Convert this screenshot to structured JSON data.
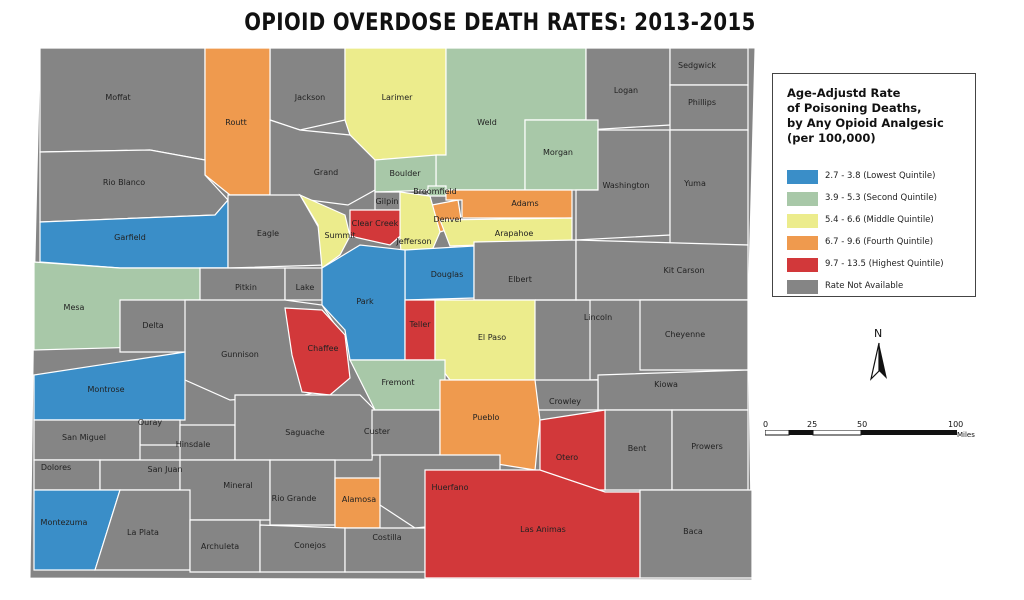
{
  "title": "OPIOID OVERDOSE DEATH RATES:  2013-2015",
  "legend": {
    "title_lines": [
      "Age-Adjustd Rate",
      "of Poisoning Deaths,",
      "by Any Opioid Analgesic",
      "(per 100,000)"
    ],
    "items": [
      {
        "label": "2.7 - 3.8 (Lowest Quintile)",
        "color": "#3a8ec8"
      },
      {
        "label": "3.9 - 5.3 (Second Quintile)",
        "color": "#a8c8a8"
      },
      {
        "label": "5.4 - 6.6 (Middle Quintile)",
        "color": "#ecec8c"
      },
      {
        "label": "6.7 - 9.6 (Fourth Quintile)",
        "color": "#ef9a4e"
      },
      {
        "label": "9.7 - 13.5 (Highest Quintile)",
        "color": "#d2383a"
      },
      {
        "label": "Rate Not Available",
        "color": "#858585"
      }
    ]
  },
  "north_arrow": {
    "label": "N"
  },
  "scale": {
    "ticks": [
      "0",
      "25",
      "50",
      "100"
    ],
    "unit": "Miles"
  },
  "counties": [
    {
      "name": "Moffat",
      "class": "na"
    },
    {
      "name": "Jackson",
      "class": "na"
    },
    {
      "name": "Larimer",
      "class": "q3"
    },
    {
      "name": "Weld",
      "class": "q2"
    },
    {
      "name": "Logan",
      "class": "na"
    },
    {
      "name": "Sedgwick",
      "class": "na"
    },
    {
      "name": "Phillips",
      "class": "na"
    },
    {
      "name": "Routt",
      "class": "q4"
    },
    {
      "name": "Morgan",
      "class": "q2"
    },
    {
      "name": "Rio Blanco",
      "class": "na"
    },
    {
      "name": "Grand",
      "class": "na"
    },
    {
      "name": "Boulder",
      "class": "q2"
    },
    {
      "name": "Broomfield",
      "class": "q2"
    },
    {
      "name": "Washington",
      "class": "na"
    },
    {
      "name": "Yuma",
      "class": "na"
    },
    {
      "name": "Gilpin",
      "class": "na"
    },
    {
      "name": "Clear Creek",
      "class": "q5"
    },
    {
      "name": "Denver",
      "class": "q4"
    },
    {
      "name": "Adams",
      "class": "q4"
    },
    {
      "name": "Garfield",
      "class": "q1"
    },
    {
      "name": "Eagle",
      "class": "na"
    },
    {
      "name": "Summit",
      "class": "q3"
    },
    {
      "name": "Jefferson",
      "class": "q3"
    },
    {
      "name": "Arapahoe",
      "class": "q3"
    },
    {
      "name": "Douglas",
      "class": "q1"
    },
    {
      "name": "Elbert",
      "class": "na"
    },
    {
      "name": "Kit Carson",
      "class": "na"
    },
    {
      "name": "Mesa",
      "class": "q2"
    },
    {
      "name": "Pitkin",
      "class": "na"
    },
    {
      "name": "Lake",
      "class": "na"
    },
    {
      "name": "Park",
      "class": "q1"
    },
    {
      "name": "Teller",
      "class": "q5"
    },
    {
      "name": "Lincoln",
      "class": "na"
    },
    {
      "name": "Cheyenne",
      "class": "na"
    },
    {
      "name": "Delta",
      "class": "na"
    },
    {
      "name": "Gunnison",
      "class": "na"
    },
    {
      "name": "Chaffee",
      "class": "q5"
    },
    {
      "name": "El Paso",
      "class": "q3"
    },
    {
      "name": "Kiowa",
      "class": "na"
    },
    {
      "name": "Montrose",
      "class": "q1"
    },
    {
      "name": "Fremont",
      "class": "q2"
    },
    {
      "name": "Crowley",
      "class": "na"
    },
    {
      "name": "Ouray",
      "class": "na"
    },
    {
      "name": "San Miguel",
      "class": "na"
    },
    {
      "name": "Hinsdale",
      "class": "na"
    },
    {
      "name": "Saguache",
      "class": "na"
    },
    {
      "name": "Custer",
      "class": "na"
    },
    {
      "name": "Pueblo",
      "class": "q4"
    },
    {
      "name": "Bent",
      "class": "na"
    },
    {
      "name": "Prowers",
      "class": "na"
    },
    {
      "name": "Otero",
      "class": "q5"
    },
    {
      "name": "Dolores",
      "class": "na"
    },
    {
      "name": "San Juan",
      "class": "na"
    },
    {
      "name": "Mineral",
      "class": "na"
    },
    {
      "name": "Rio Grande",
      "class": "na"
    },
    {
      "name": "Alamosa",
      "class": "q4"
    },
    {
      "name": "Huerfano",
      "class": "na"
    },
    {
      "name": "Montezuma",
      "class": "q1"
    },
    {
      "name": "La Plata",
      "class": "na"
    },
    {
      "name": "Archuleta",
      "class": "na"
    },
    {
      "name": "Conejos",
      "class": "na"
    },
    {
      "name": "Costilla",
      "class": "na"
    },
    {
      "name": "Las Animas",
      "class": "q5"
    },
    {
      "name": "Baca",
      "class": "na"
    }
  ]
}
